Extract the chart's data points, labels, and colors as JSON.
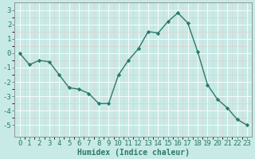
{
  "x": [
    0,
    1,
    2,
    3,
    4,
    5,
    6,
    7,
    8,
    9,
    10,
    11,
    12,
    13,
    14,
    15,
    16,
    17,
    18,
    19,
    20,
    21,
    22,
    23
  ],
  "y": [
    0,
    -0.8,
    -0.5,
    -0.6,
    -1.5,
    -2.4,
    -2.5,
    -2.8,
    -3.5,
    -3.5,
    -1.5,
    -0.5,
    0.3,
    1.5,
    1.4,
    2.2,
    2.8,
    2.1,
    0.1,
    -2.2,
    -3.2,
    -3.8,
    -4.6,
    -5.0
  ],
  "line_color": "#2a7a6a",
  "marker": "D",
  "markersize": 2.2,
  "linewidth": 1.0,
  "bg_color": "#c8eae6",
  "grid_color": "#ffffff",
  "grid_minor_color": "#e8f8f6",
  "xlabel": "Humidex (Indice chaleur)",
  "ylim": [
    -5.8,
    3.5
  ],
  "yticks": [
    -5,
    -4,
    -3,
    -2,
    -1,
    0,
    1,
    2,
    3
  ],
  "xticks": [
    0,
    1,
    2,
    3,
    4,
    5,
    6,
    7,
    8,
    9,
    10,
    11,
    12,
    13,
    14,
    15,
    16,
    17,
    18,
    19,
    20,
    21,
    22,
    23
  ],
  "xlabel_fontsize": 7,
  "tick_fontsize": 6.5,
  "tick_color": "#2a7a6a",
  "axis_color": "#2a7a6a",
  "spine_color": "#888888"
}
